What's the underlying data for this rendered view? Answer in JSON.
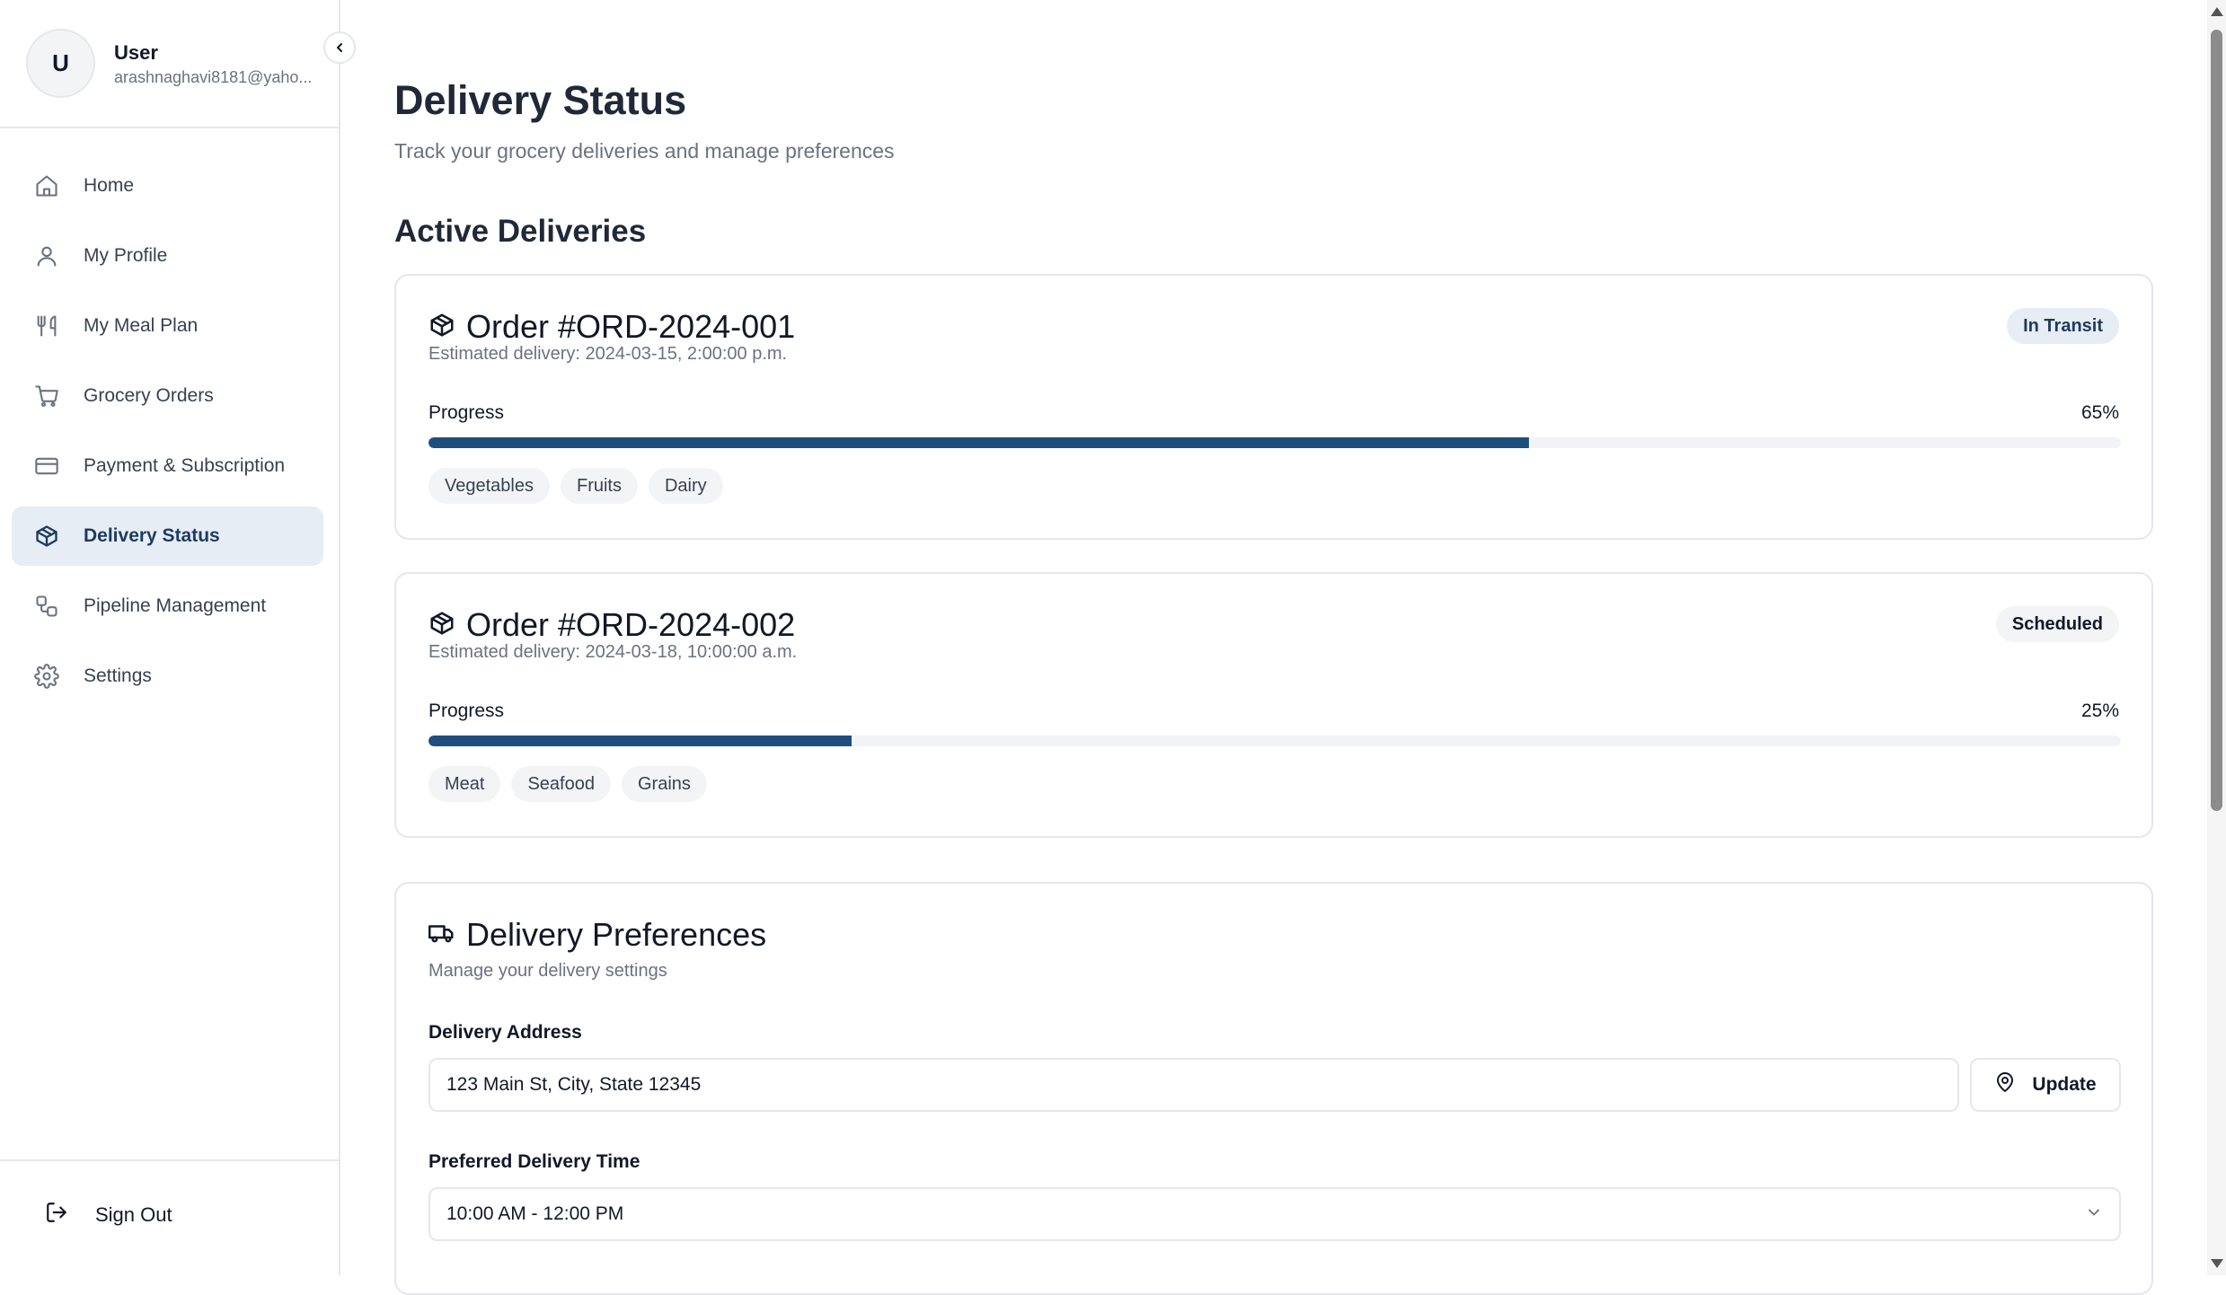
{
  "user": {
    "initial": "U",
    "name": "User",
    "email": "arashnaghavi8181@yaho..."
  },
  "sidebar": {
    "items": [
      {
        "label": "Home",
        "icon": "home-icon"
      },
      {
        "label": "My Profile",
        "icon": "user-icon"
      },
      {
        "label": "My Meal Plan",
        "icon": "utensils-icon"
      },
      {
        "label": "Grocery Orders",
        "icon": "cart-icon"
      },
      {
        "label": "Payment & Subscription",
        "icon": "credit-card-icon"
      },
      {
        "label": "Delivery Status",
        "icon": "package-icon",
        "active": true
      },
      {
        "label": "Pipeline Management",
        "icon": "workflow-icon"
      },
      {
        "label": "Settings",
        "icon": "gear-icon"
      }
    ],
    "sign_out": "Sign Out"
  },
  "page": {
    "title": "Delivery Status",
    "subtitle": "Track your grocery deliveries and manage preferences",
    "section_title": "Active Deliveries"
  },
  "orders": [
    {
      "title": "Order #ORD-2024-001",
      "eta": "Estimated delivery: 2024-03-15, 2:00:00 p.m.",
      "status": "In Transit",
      "progress_label": "Progress",
      "progress_percent": 65,
      "progress_text": "65%",
      "tags": [
        "Vegetables",
        "Fruits",
        "Dairy"
      ]
    },
    {
      "title": "Order #ORD-2024-002",
      "eta": "Estimated delivery: 2024-03-18, 10:00:00 a.m.",
      "status": "Scheduled",
      "progress_label": "Progress",
      "progress_percent": 25,
      "progress_text": "25%",
      "tags": [
        "Meat",
        "Seafood",
        "Grains"
      ]
    }
  ],
  "preferences": {
    "title": "Delivery Preferences",
    "subtitle": "Manage your delivery settings",
    "address_label": "Delivery Address",
    "address_value": "123 Main St, City, State 12345",
    "update_label": "Update",
    "time_label": "Preferred Delivery Time",
    "time_value": "10:00 AM - 12:00 PM"
  },
  "colors": {
    "accent": "#1e4e7e",
    "active_nav_bg": "#e6edf5",
    "border": "#e5e7eb",
    "muted_text": "#6b7280"
  }
}
